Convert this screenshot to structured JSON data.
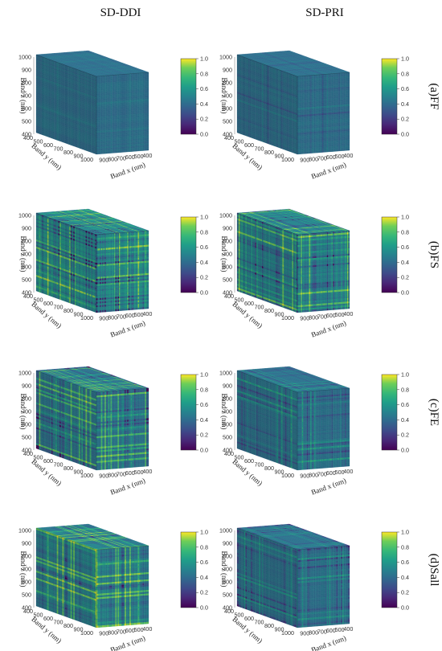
{
  "figure": {
    "column_titles": [
      "SD-DDI",
      "SD-PRI"
    ],
    "row_labels": [
      "(a)FF",
      "(b)FS",
      "(c)FE",
      "(d)Sall"
    ]
  },
  "chart_data": {
    "type": "heatmap",
    "description_kind": "3d-cube",
    "axes": {
      "x": {
        "label": "Band x (nm)",
        "ticks": [
          "400",
          "500",
          "600",
          "700",
          "800",
          "900"
        ],
        "range": [
          400,
          1000
        ]
      },
      "y": {
        "label": "Band y (nm)",
        "ticks": [
          "400",
          "500",
          "600",
          "700",
          "800",
          "900",
          "1000"
        ],
        "range": [
          400,
          1000
        ]
      },
      "z": {
        "label": "Band z (nm)",
        "ticks": [
          "400",
          "500",
          "600",
          "700",
          "800",
          "900",
          "1000"
        ],
        "range": [
          400,
          1000
        ]
      }
    },
    "colorbar": {
      "colormap": "viridis",
      "range": [
        0.0,
        1.0
      ],
      "ticks": [
        "0.0",
        "0.2",
        "0.4",
        "0.6",
        "0.8",
        "1.0"
      ]
    },
    "panels": [
      {
        "row": "(a)FF",
        "column": "SD-DDI",
        "mean": 0.42,
        "contrast": 0.15,
        "stripe_density": 0.2
      },
      {
        "row": "(a)FF",
        "column": "SD-PRI",
        "mean": 0.42,
        "contrast": 0.22,
        "stripe_density": 0.55
      },
      {
        "row": "(b)FS",
        "column": "SD-DDI",
        "mean": 0.55,
        "contrast": 0.8,
        "stripe_density": 0.6
      },
      {
        "row": "(b)FS",
        "column": "SD-PRI",
        "mean": 0.48,
        "contrast": 0.7,
        "stripe_density": 0.85
      },
      {
        "row": "(c)FE",
        "column": "SD-DDI",
        "mean": 0.45,
        "contrast": 0.6,
        "stripe_density": 0.7
      },
      {
        "row": "(c)FE",
        "column": "SD-PRI",
        "mean": 0.43,
        "contrast": 0.4,
        "stripe_density": 0.65
      },
      {
        "row": "(d)Sall",
        "column": "SD-DDI",
        "mean": 0.5,
        "contrast": 0.8,
        "stripe_density": 0.75
      },
      {
        "row": "(d)Sall",
        "column": "SD-PRI",
        "mean": 0.43,
        "contrast": 0.45,
        "stripe_density": 0.7
      }
    ]
  }
}
